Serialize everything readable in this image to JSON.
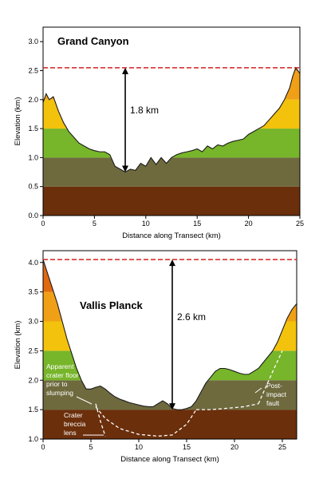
{
  "chart_data": [
    {
      "type": "area",
      "title": "Grand Canyon",
      "xlabel": "Distance along Transect (km)",
      "ylabel": "Elevation (km)",
      "xlim": [
        0,
        25
      ],
      "ylim": [
        0,
        3.25
      ],
      "xticks": [
        "0",
        "5",
        "10",
        "15",
        "20",
        "25"
      ],
      "yticks": [
        "0.0",
        "0.5",
        "1.0",
        "1.5",
        "2.0",
        "2.5",
        "3.0"
      ],
      "bands": [
        {
          "from": 0.0,
          "to": 0.5,
          "color": "#6b2f0c"
        },
        {
          "from": 0.5,
          "to": 1.0,
          "color": "#6e6a3e"
        },
        {
          "from": 1.0,
          "to": 1.5,
          "color": "#77b52a"
        },
        {
          "from": 1.5,
          "to": 2.0,
          "color": "#f3c20c"
        },
        {
          "from": 2.0,
          "to": 2.5,
          "color": "#f0a016"
        },
        {
          "from": 2.5,
          "to": 3.0,
          "color": "#e06a10"
        }
      ],
      "x": [
        0,
        0.3,
        0.6,
        1.0,
        1.5,
        2.0,
        2.5,
        3.0,
        3.5,
        4.0,
        4.5,
        5.0,
        5.5,
        6.0,
        6.5,
        7.0,
        7.5,
        8.0,
        8.5,
        9.0,
        9.5,
        10.0,
        10.5,
        11.0,
        11.5,
        12.0,
        12.5,
        13.0,
        13.5,
        14.0,
        14.5,
        15.0,
        15.5,
        16.0,
        16.5,
        17.0,
        17.5,
        18.0,
        18.5,
        19.0,
        19.5,
        20.0,
        20.5,
        21.0,
        21.5,
        22.0,
        22.5,
        23.0,
        23.5,
        24.0,
        24.3,
        24.6,
        25.0
      ],
      "y": [
        1.95,
        2.1,
        2.0,
        2.05,
        1.8,
        1.6,
        1.45,
        1.35,
        1.25,
        1.2,
        1.15,
        1.12,
        1.1,
        1.1,
        1.05,
        0.85,
        0.8,
        0.75,
        0.8,
        0.78,
        0.9,
        0.85,
        1.0,
        0.88,
        1.0,
        0.9,
        1.0,
        1.05,
        1.08,
        1.1,
        1.12,
        1.15,
        1.1,
        1.2,
        1.15,
        1.22,
        1.2,
        1.25,
        1.28,
        1.3,
        1.32,
        1.4,
        1.45,
        1.5,
        1.55,
        1.65,
        1.75,
        1.85,
        2.0,
        2.2,
        2.4,
        2.55,
        2.45
      ],
      "reference_line": {
        "y": 2.55,
        "color": "#d42020"
      },
      "arrow": {
        "x": 8.0,
        "y_from": 0.75,
        "y_to": 2.55,
        "label": "1.8 km"
      },
      "annotations": []
    },
    {
      "type": "area",
      "title": "Vallis Planck",
      "xlabel": "Distance along Transect (km)",
      "ylabel": "Elevation (km)",
      "xlim": [
        0,
        26.5
      ],
      "ylim": [
        1.0,
        4.2
      ],
      "xticks": [
        "0",
        "5",
        "10",
        "15",
        "20",
        "25"
      ],
      "yticks": [
        "1.0",
        "1.5",
        "2.0",
        "2.5",
        "3.0",
        "3.5",
        "4.0"
      ],
      "bands": [
        {
          "from": 1.0,
          "to": 1.5,
          "color": "#6b2f0c"
        },
        {
          "from": 1.5,
          "to": 2.0,
          "color": "#6e6a3e"
        },
        {
          "from": 2.0,
          "to": 2.5,
          "color": "#77b52a"
        },
        {
          "from": 2.5,
          "to": 3.0,
          "color": "#f3c20c"
        },
        {
          "from": 3.0,
          "to": 3.5,
          "color": "#f0a016"
        },
        {
          "from": 3.5,
          "to": 4.0,
          "color": "#e06a10"
        },
        {
          "from": 4.0,
          "to": 4.5,
          "color": "#c81414"
        }
      ],
      "x": [
        0,
        0.5,
        1.0,
        1.5,
        2.0,
        2.5,
        3.0,
        3.5,
        4.0,
        4.5,
        5.0,
        5.5,
        6.0,
        6.5,
        7.0,
        7.5,
        8.0,
        8.5,
        9.0,
        9.5,
        10.0,
        10.5,
        11.0,
        11.5,
        12.0,
        12.5,
        13.0,
        13.5,
        14.0,
        14.5,
        15.0,
        15.5,
        16.0,
        16.5,
        17.0,
        17.5,
        18.0,
        18.5,
        19.0,
        19.5,
        20.0,
        20.5,
        21.0,
        21.5,
        22.0,
        22.5,
        23.0,
        23.5,
        24.0,
        24.5,
        25.0,
        25.5,
        26.0,
        26.5
      ],
      "y": [
        4.05,
        3.8,
        3.55,
        3.3,
        3.0,
        2.7,
        2.45,
        2.2,
        2.0,
        1.85,
        1.85,
        1.88,
        1.9,
        1.85,
        1.78,
        1.72,
        1.68,
        1.65,
        1.62,
        1.6,
        1.58,
        1.56,
        1.55,
        1.55,
        1.6,
        1.65,
        1.6,
        1.52,
        1.5,
        1.5,
        1.52,
        1.55,
        1.65,
        1.8,
        1.95,
        2.05,
        2.15,
        2.2,
        2.2,
        2.18,
        2.15,
        2.12,
        2.1,
        2.1,
        2.15,
        2.2,
        2.3,
        2.4,
        2.5,
        2.65,
        2.85,
        3.05,
        3.2,
        3.3
      ],
      "reference_line": {
        "y": 4.05,
        "color": "#d42020"
      },
      "arrow": {
        "x": 13.5,
        "y_from": 1.5,
        "y_to": 4.05,
        "label": "2.6 km"
      },
      "dashed_curves": [
        {
          "name": "apparent-floor",
          "x": [
            5.5,
            6.5,
            8.0,
            10.0,
            12.0,
            13.5,
            15.0,
            16.0
          ],
          "y": [
            1.55,
            1.35,
            1.18,
            1.08,
            1.05,
            1.07,
            1.25,
            1.5
          ]
        },
        {
          "name": "floor-level",
          "x": [
            16.0,
            17.5,
            19.0,
            21.0,
            22.5
          ],
          "y": [
            1.5,
            1.5,
            1.52,
            1.55,
            1.6
          ]
        },
        {
          "name": "post-impact-fault",
          "x": [
            22.5,
            24.0,
            25.0
          ],
          "y": [
            1.6,
            2.15,
            2.5
          ]
        },
        {
          "name": "left-wall",
          "x": [
            5.5,
            6.0,
            6.5
          ],
          "y": [
            1.6,
            1.3,
            1.05
          ]
        }
      ],
      "annotations": [
        {
          "lines": [
            "Apparent",
            "crater floor",
            "prior to",
            "slumping"
          ],
          "color": "#ffffff"
        },
        {
          "lines": [
            "Crater",
            "breccia",
            "lens"
          ],
          "color": "#ffffff"
        },
        {
          "lines": [
            "Post-",
            "impact",
            "fault"
          ],
          "color": "#ffffff"
        }
      ]
    }
  ]
}
